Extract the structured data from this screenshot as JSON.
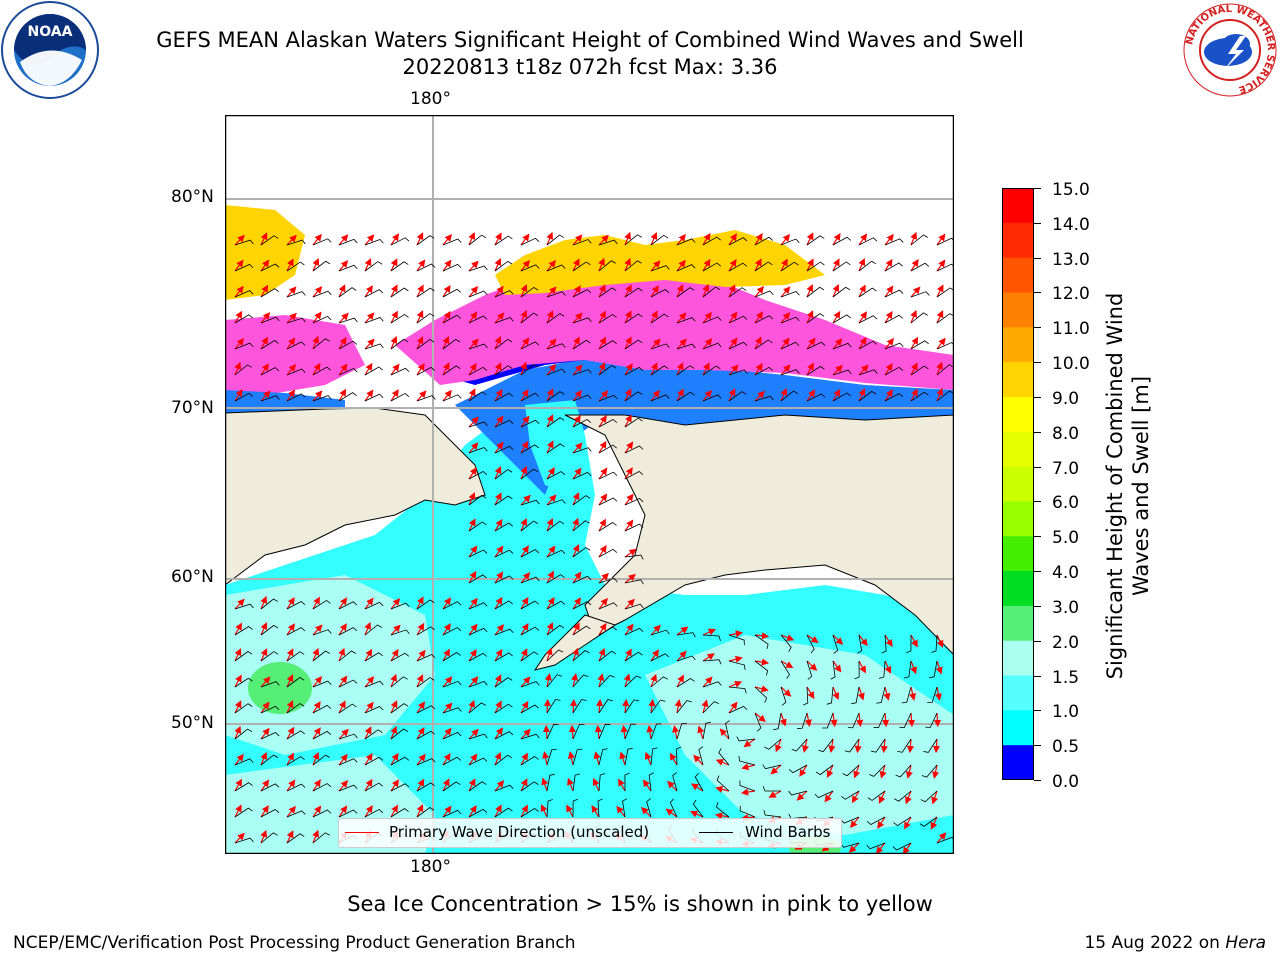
{
  "title_line1": "GEFS MEAN Alaskan Waters Significant Height of Combined Wind Waves and Swell",
  "title_line2": "20220813 t18z 072h fcst   Max: 3.36",
  "lon_label_top": "180°",
  "lon_label_bottom": "180°",
  "lat_labels": [
    "80°N",
    "70°N",
    "60°N",
    "50°N"
  ],
  "colorbar": {
    "label": "Significant Height of Combined Wind Waves and Swell [m]",
    "ticks": [
      "15.0",
      "14.0",
      "13.0",
      "12.0",
      "11.0",
      "10.0",
      "9.0",
      "8.0",
      "7.0",
      "6.0",
      "5.0",
      "4.0",
      "3.0",
      "2.0",
      "1.5",
      "1.0",
      "0.5",
      "0.0"
    ],
    "colors": [
      "#ff0000",
      "#ff2a00",
      "#ff5500",
      "#ff7f00",
      "#ffaa00",
      "#ffd400",
      "#ffff00",
      "#e6ff00",
      "#ccff00",
      "#99ff00",
      "#44ee00",
      "#00dd22",
      "#55ee77",
      "#aaffee",
      "#55ffff",
      "#00ffff",
      "#0080ff",
      "#0000ff"
    ]
  },
  "legend": {
    "wave_direction": "Primary Wave Direction (unscaled)",
    "wind_barbs": "Wind Barbs"
  },
  "note": "Sea Ice Concentration > 15% is shown in pink to yellow",
  "footer_left": "NCEP/EMC/Verification Post Processing Product Generation Branch",
  "footer_right_date": "15 Aug 2022 on ",
  "footer_right_host": "Hera",
  "logos": {
    "left": "NOAA",
    "right": "NATIONAL WEATHER SERVICE"
  },
  "colors": {
    "land": "#efecdc",
    "ocean_main": "#33ffff",
    "ocean_light": "#aafff5",
    "arrow": "#ff0000"
  }
}
